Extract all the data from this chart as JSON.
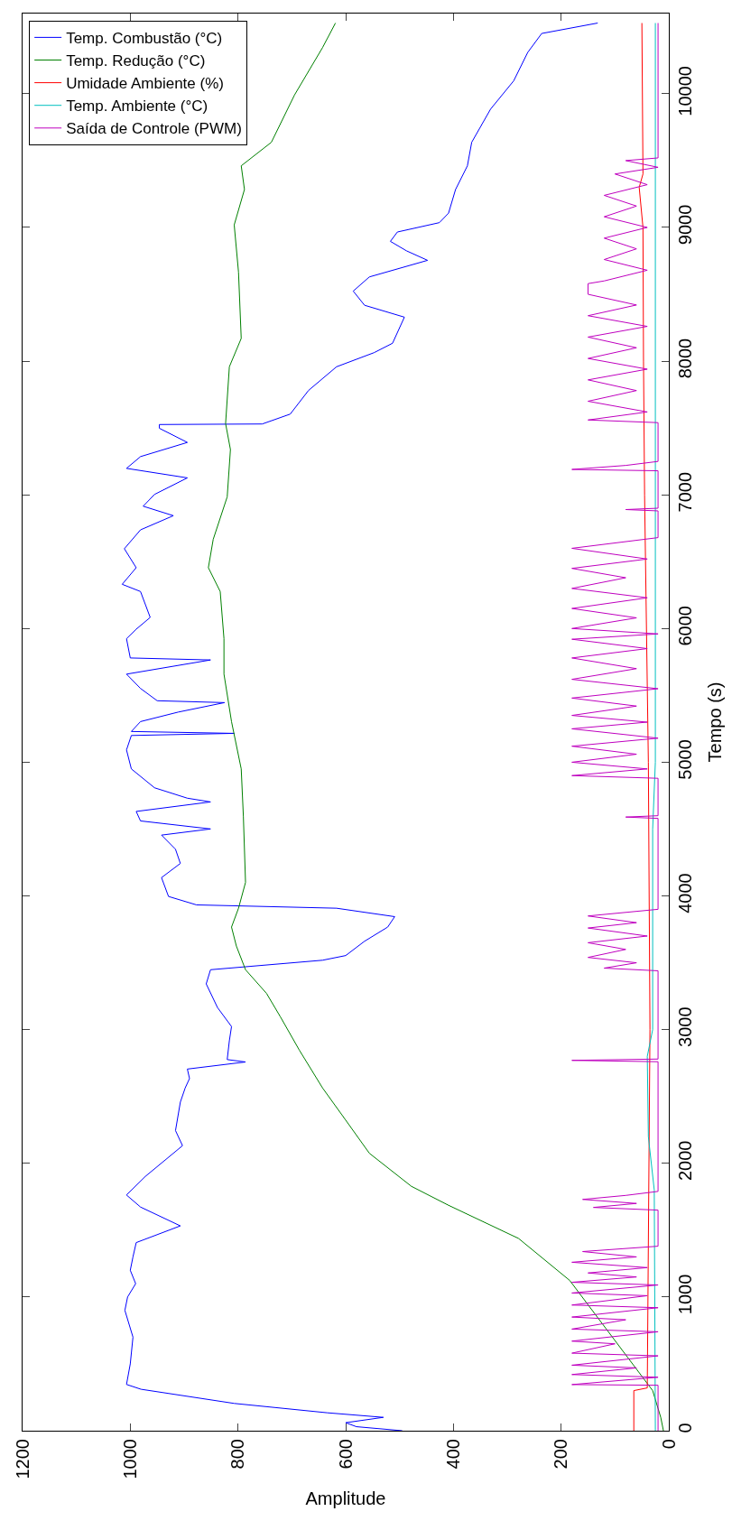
{
  "chart_data": {
    "type": "line",
    "xlabel": "Amplitude",
    "ylabel": "Tempo (s)",
    "xlim": [
      1200,
      0
    ],
    "ylim": [
      0,
      10600
    ],
    "xticks": [
      1200,
      1000,
      800,
      600,
      400,
      200,
      0
    ],
    "yticks": [
      0,
      1000,
      2000,
      3000,
      4000,
      5000,
      6000,
      7000,
      8000,
      9000,
      10000
    ],
    "legend": "top left",
    "marker": "none",
    "line_style": "solid",
    "series": [
      {
        "name": "Temp. Combustão (°C)",
        "color": "#0000ff",
        "values": [
          0,
          30,
          60,
          100,
          134,
          204,
          310,
          346,
          500,
          700,
          900,
          1000,
          1100,
          1200,
          1300,
          1407,
          1532,
          1673,
          1763,
          1902,
          2132,
          2245,
          2458,
          2564,
          2634,
          2705,
          2758,
          2776,
          2917,
          3023,
          3165,
          3342,
          3448,
          3519,
          3554,
          3661,
          3767,
          3845,
          3908,
          3933,
          3996,
          4137,
          4243,
          4349,
          4455,
          4501,
          4561,
          4632,
          4703,
          4731,
          4809,
          4950,
          5092,
          5200,
          5216,
          5230,
          5304,
          5375,
          5446,
          5460,
          5552,
          5659,
          5765,
          5780,
          5924,
          5995,
          6083,
          6277,
          6331,
          6455,
          6597,
          6738,
          6844,
          6915,
          7003,
          7127,
          7198,
          7286,
          7392,
          7498,
          7526,
          7530,
          7604,
          7781,
          7958,
          8064,
          8134,
          8329,
          8418,
          8524,
          8630,
          8754,
          8825,
          8896,
          8966,
          9036,
          9107,
          9284,
          9461,
          9637,
          9885,
          10097,
          10309,
          10451,
          10529
        ],
        "x": [
          495,
          580,
          600,
          530,
          634,
          807,
          980,
          1007,
          1000,
          995,
          1010,
          1005,
          990,
          1000,
          995,
          989,
          907,
          981,
          1007,
          972,
          903,
          916,
          907,
          898,
          890,
          894,
          786,
          820,
          816,
          812,
          838,
          859,
          851,
          643,
          600,
          565,
          522,
          509,
          617,
          877,
          929,
          942,
          907,
          916,
          942,
          851,
          981,
          989,
          851,
          894,
          955,
          998,
          1007,
          998,
          807,
          998,
          981,
          911,
          825,
          950,
          981,
          1007,
          851,
          1000,
          1007,
          989,
          963,
          981,
          1015,
          989,
          1011,
          981,
          920,
          976,
          955,
          894,
          1007,
          981,
          894,
          946,
          946,
          755,
          703,
          669,
          617,
          547,
          513,
          491,
          565,
          586,
          556,
          448,
          487,
          517,
          504,
          426,
          409,
          396,
          374,
          366,
          331,
          288,
          262,
          236,
          132
        ]
      },
      {
        "name": "Temp. Redução (°C)",
        "color": "#008000",
        "values": [
          0,
          100,
          300,
          1124,
          1438,
          1686,
          1828,
          2075,
          2323,
          2564,
          2846,
          3094,
          3271,
          3448,
          3625,
          3767,
          3908,
          4101,
          4597,
          4950,
          5304,
          5659,
          5924,
          6277,
          6455,
          6667,
          6985,
          7339,
          7533,
          7958,
          8170,
          8666,
          9019,
          9284,
          9461,
          9637,
          9991,
          10345,
          10529
        ],
        "x": [
          10,
          15,
          30,
          184,
          279,
          409,
          478,
          556,
          600,
          643,
          686,
          721,
          747,
          786,
          803,
          812,
          799,
          786,
          790,
          794,
          812,
          826,
          826,
          833,
          855,
          846,
          820,
          814,
          823,
          816,
          794,
          799,
          807,
          788,
          794,
          738,
          695,
          643,
          619
        ]
      },
      {
        "name": "Umidade Ambiente (%)",
        "color": "#ff0000",
        "values": [
          0,
          300,
          320,
          3000,
          5000,
          7000,
          8000,
          9000,
          9300,
          9400,
          10529
        ],
        "x": [
          65,
          65,
          40,
          35,
          38,
          45,
          47,
          48,
          55,
          48,
          50
        ]
      },
      {
        "name": "Temp. Ambiente (°C)",
        "color": "#00bfbf",
        "values": [
          0,
          1800,
          2200,
          2800,
          3000,
          4500,
          5000,
          10529
        ],
        "x": [
          25,
          27,
          38,
          40,
          30,
          30,
          25,
          25
        ]
      },
      {
        "name": "Saída de Controle (PWM)",
        "color": "#bf00bf",
        "values": [
          0,
          340,
          345,
          400,
          420,
          470,
          490,
          560,
          580,
          650,
          670,
          740,
          760,
          830,
          850,
          920,
          940,
          1010,
          1030,
          1090,
          1110,
          1150,
          1180,
          1220,
          1260,
          1300,
          1340,
          1380,
          1650,
          1670,
          1700,
          1730,
          1760,
          1790,
          2760,
          2770,
          2780,
          3440,
          3460,
          3500,
          3540,
          3600,
          3650,
          3700,
          3760,
          3800,
          3850,
          3900,
          4580,
          4590,
          4600,
          4880,
          4900,
          4950,
          5000,
          5060,
          5120,
          5180,
          5250,
          5300,
          5350,
          5420,
          5480,
          5550,
          5620,
          5700,
          5780,
          5850,
          5920,
          5960,
          6000,
          6080,
          6150,
          6230,
          6300,
          6380,
          6450,
          6520,
          6600,
          6680,
          6880,
          6890,
          6900,
          7180,
          7190,
          7220,
          7250,
          7540,
          7560,
          7620,
          7700,
          7780,
          7860,
          7940,
          8020,
          8100,
          8180,
          8260,
          8340,
          8420,
          8500,
          8580,
          8600,
          8680,
          8760,
          8840,
          8920,
          9000,
          9080,
          9160,
          9240,
          9320,
          9400,
          9450,
          9500,
          9520,
          10529
        ],
        "x": [
          20,
          20,
          180,
          20,
          180,
          60,
          180,
          20,
          180,
          100,
          180,
          20,
          180,
          80,
          180,
          20,
          180,
          40,
          180,
          20,
          180,
          60,
          150,
          40,
          180,
          60,
          160,
          20,
          20,
          140,
          60,
          160,
          80,
          20,
          20,
          180,
          20,
          20,
          120,
          60,
          150,
          80,
          150,
          40,
          150,
          60,
          150,
          20,
          20,
          80,
          20,
          20,
          180,
          40,
          180,
          60,
          180,
          20,
          180,
          40,
          180,
          60,
          180,
          20,
          180,
          60,
          180,
          40,
          180,
          20,
          180,
          60,
          180,
          40,
          180,
          80,
          180,
          40,
          180,
          20,
          20,
          80,
          20,
          20,
          180,
          80,
          20,
          20,
          150,
          40,
          150,
          60,
          150,
          40,
          150,
          60,
          150,
          40,
          150,
          60,
          150,
          150,
          120,
          40,
          120,
          60,
          120,
          40,
          120,
          60,
          120,
          40,
          100,
          20,
          80,
          20,
          20
        ]
      }
    ]
  }
}
